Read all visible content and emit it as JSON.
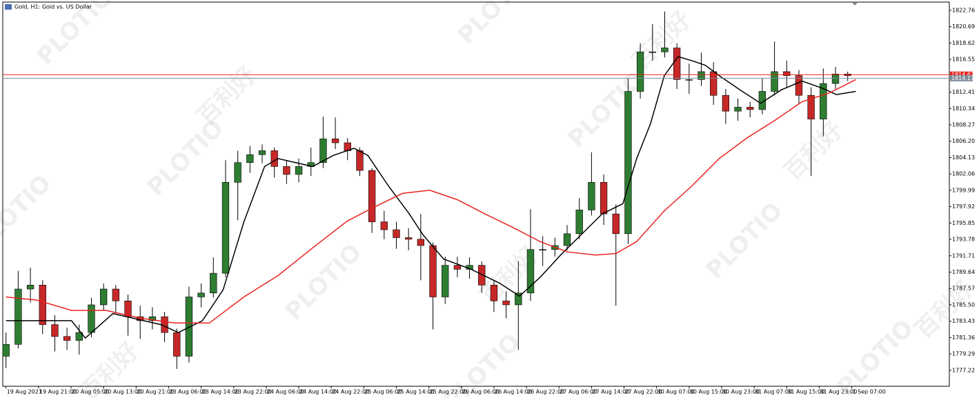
{
  "chart_data": {
    "type": "candlestick",
    "title": "Gold, H1: Gold vs. US Dollar",
    "x": [
      0,
      3,
      6,
      9,
      12,
      15,
      18,
      21,
      24,
      27,
      30,
      33,
      36,
      39,
      42,
      45,
      48,
      51,
      54,
      57,
      60,
      63,
      66,
      69,
      72,
      75,
      78,
      81,
      84,
      87,
      90,
      93,
      96,
      99,
      102,
      105,
      108,
      111,
      114,
      117,
      120,
      123,
      126,
      129,
      132,
      135,
      138,
      141,
      144,
      147,
      150,
      153,
      156,
      159,
      162,
      165,
      168,
      171,
      174,
      177,
      180,
      183,
      186,
      189,
      192,
      195,
      198,
      201,
      204,
      207
    ],
    "open": [
      1779,
      1780.5,
      1787.5,
      1788,
      1783,
      1781.5,
      1781,
      1782,
      1785.5,
      1787.5,
      1786,
      1784,
      1783.5,
      1784,
      1782,
      1779,
      1786.5,
      1787,
      1789.5,
      1801,
      1803.5,
      1804.5,
      1805,
      1803,
      1802,
      1803,
      1803.5,
      1806.5,
      1806,
      1805,
      1802.5,
      1796,
      1795,
      1794,
      1793.8,
      1793,
      1786.5,
      1790.5,
      1790,
      1790.5,
      1788,
      1786,
      1785.5,
      1787,
      1792.5,
      1792.5,
      1793,
      1794.5,
      1797.5,
      1801,
      1797,
      1794.5,
      1812.5,
      1817.5,
      1817.5,
      1818,
      1814,
      1814,
      1815,
      1812,
      1810,
      1810.5,
      1810.2,
      1812.5,
      1815,
      1814.5,
      1812,
      1809,
      1813.5,
      1814.7
    ],
    "high": [
      1782,
      1789.8,
      1790.2,
      1788.6,
      1784.2,
      1782.6,
      1783,
      1786.4,
      1788.2,
      1788,
      1786.8,
      1785.4,
      1785.2,
      1784.6,
      1782.5,
      1787.8,
      1788.2,
      1791.5,
      1803.8,
      1805,
      1805.6,
      1805.8,
      1805.4,
      1803.8,
      1804,
      1805.4,
      1809.3,
      1809.2,
      1806.6,
      1805.4,
      1802.8,
      1797.4,
      1796,
      1795.2,
      1797,
      1793.4,
      1791.6,
      1791.6,
      1791.5,
      1791,
      1788.6,
      1787.2,
      1791,
      1797.6,
      1794.2,
      1794,
      1795.6,
      1799,
      1804.8,
      1802,
      1798.2,
      1814.2,
      1818.6,
      1821,
      1822.6,
      1818.6,
      1816,
      1817.4,
      1816.2,
      1812.8,
      1811.6,
      1811.2,
      1814.2,
      1818.8,
      1816.4,
      1815.2,
      1813,
      1815.4,
      1815.6,
      1815
    ],
    "low": [
      1777.5,
      1780,
      1785.8,
      1781.8,
      1779.6,
      1779.8,
      1779.2,
      1781.4,
      1784.8,
      1784.5,
      1781.6,
      1781.2,
      1782.4,
      1780.8,
      1777.4,
      1778.2,
      1785.2,
      1786.4,
      1789,
      1796.2,
      1802.2,
      1803.4,
      1801.6,
      1800.8,
      1801,
      1801.8,
      1802.8,
      1805.2,
      1803.8,
      1801.8,
      1794.6,
      1793.8,
      1792.6,
      1792.4,
      1788.6,
      1782.4,
      1785.6,
      1789,
      1788.8,
      1787,
      1784.6,
      1783.8,
      1779.8,
      1786,
      1790.4,
      1791.6,
      1792.4,
      1793.8,
      1796.8,
      1795.6,
      1785.4,
      1793.2,
      1811.6,
      1816.4,
      1816.8,
      1812.8,
      1812.2,
      1813.2,
      1810.8,
      1808.4,
      1808.8,
      1809.2,
      1809.6,
      1812,
      1813,
      1811,
      1801.8,
      1806.8,
      1812.8,
      1813.8
    ],
    "close": [
      1780.5,
      1787.5,
      1788,
      1783,
      1781.5,
      1781,
      1782,
      1785.5,
      1787.5,
      1786,
      1784,
      1783.5,
      1784,
      1782,
      1779,
      1786.5,
      1787,
      1789.5,
      1801,
      1803.5,
      1804.5,
      1805,
      1803,
      1802,
      1803,
      1803.5,
      1806.5,
      1806,
      1805,
      1802.5,
      1796,
      1795,
      1794,
      1793.8,
      1793,
      1786.5,
      1790.5,
      1790,
      1790.5,
      1788,
      1786,
      1785.5,
      1787,
      1792.5,
      1792.5,
      1793,
      1794.5,
      1797.5,
      1801,
      1797,
      1794.5,
      1812.5,
      1817.5,
      1817.5,
      1818,
      1814,
      1814,
      1815,
      1812,
      1810,
      1810.5,
      1810.2,
      1812.5,
      1815,
      1814.5,
      1812,
      1809,
      1813.5,
      1814.7,
      1814.5
    ],
    "up_color": "#2e7d32",
    "down_color": "#c62828",
    "lines": [
      {
        "color": "#000000",
        "x": [
          0,
          16.1,
          19.5,
          26.3,
          38.1,
          42.4,
          48.3,
          53.4,
          58.5,
          63.6,
          66.9,
          75.4,
          80.5,
          85.6,
          89,
          94.1,
          99.2,
          102.5,
          107.6,
          114.4,
          121.2,
          126.3,
          131.4,
          136.4,
          141.5,
          146.6,
          151.7,
          155.1,
          158.5,
          161.9,
          165.3,
          168.6,
          172,
          175.4,
          180.5,
          185.6,
          190.7,
          195.8,
          200.8,
          204.2,
          209
        ],
        "values": [
          1783.5,
          1783.5,
          1781.3,
          1784.4,
          1783,
          1782,
          1783.5,
          1787.4,
          1796,
          1803,
          1804,
          1803,
          1804.4,
          1805.3,
          1804.4,
          1800.5,
          1797,
          1794.4,
          1791.3,
          1790,
          1788.3,
          1786.6,
          1789,
          1791.8,
          1794.4,
          1797,
          1798.3,
          1804,
          1808.4,
          1814.5,
          1816.9,
          1816.4,
          1815.8,
          1814.5,
          1812.7,
          1811,
          1812.7,
          1813.8,
          1812.9,
          1812.1,
          1812.5
        ]
      },
      {
        "color": "#e8211e",
        "x": [
          0,
          7.6,
          16.1,
          24.6,
          33.1,
          41.5,
          50,
          58.5,
          66.9,
          75.4,
          83.9,
          90.7,
          97.5,
          104.2,
          111,
          117.8,
          124.6,
          131.4,
          138.1,
          144.9,
          150,
          155.1,
          161.9,
          168.6,
          175.4,
          182.2,
          189,
          195.8,
          202.5,
          209
        ],
        "values": [
          1786.5,
          1786.1,
          1784.8,
          1784.8,
          1783.8,
          1783.2,
          1783.2,
          1786.5,
          1789.2,
          1792.7,
          1796.1,
          1797.9,
          1799.6,
          1800,
          1798.8,
          1797,
          1795.3,
          1793.5,
          1792.2,
          1791.8,
          1792,
          1793.5,
          1797.4,
          1800.5,
          1804,
          1806.6,
          1808.8,
          1811.2,
          1812.3,
          1814
        ]
      }
    ],
    "price_lines": [
      {
        "value": 1814.62,
        "color": "#e8211e"
      },
      {
        "value": 1814.17,
        "color": "#7f8c9a"
      }
    ],
    "xlim": [
      -0.8,
      232
    ],
    "ylim": [
      1775.2,
      1823.8
    ],
    "xticks": [
      {
        "value": 0,
        "label": "19 Aug 2021"
      },
      {
        "value": 8,
        "label": "19 Aug 21:00"
      },
      {
        "value": 16,
        "label": "20 Aug 05:00"
      },
      {
        "value": 24,
        "label": "20 Aug 13:00"
      },
      {
        "value": 32,
        "label": "20 Aug 21:00"
      },
      {
        "value": 40,
        "label": "23 Aug 06:00"
      },
      {
        "value": 48,
        "label": "23 Aug 14:00"
      },
      {
        "value": 56,
        "label": "23 Aug 22:00"
      },
      {
        "value": 64,
        "label": "24 Aug 06:00"
      },
      {
        "value": 72,
        "label": "24 Aug 14:00"
      },
      {
        "value": 80,
        "label": "24 Aug 22:00"
      },
      {
        "value": 88,
        "label": "25 Aug 06:00"
      },
      {
        "value": 96,
        "label": "25 Aug 14:00"
      },
      {
        "value": 104,
        "label": "25 Aug 22:00"
      },
      {
        "value": 112,
        "label": "26 Aug 06:00"
      },
      {
        "value": 120,
        "label": "26 Aug 14:00"
      },
      {
        "value": 128,
        "label": "26 Aug 22:00"
      },
      {
        "value": 136,
        "label": "27 Aug 06:00"
      },
      {
        "value": 144,
        "label": "27 Aug 14:00"
      },
      {
        "value": 152,
        "label": "27 Aug 22:00"
      },
      {
        "value": 160,
        "label": "30 Aug 07:00"
      },
      {
        "value": 168,
        "label": "30 Aug 15:00"
      },
      {
        "value": 176,
        "label": "30 Aug 23:00"
      },
      {
        "value": 184,
        "label": "31 Aug 07:00"
      },
      {
        "value": 192,
        "label": "31 Aug 15:00"
      },
      {
        "value": 200,
        "label": "31 Aug 23:00"
      },
      {
        "value": 208,
        "label": "1 Sep 07:00"
      }
    ],
    "yticks": [
      1822.76,
      1820.69,
      1818.62,
      1816.55,
      1812.41,
      1810.34,
      1808.27,
      {
        "value": 1806.2,
        "label": "1806.20"
      },
      1804.13,
      1802.06,
      1799.99,
      1797.92,
      1795.85,
      1793.78,
      1791.71,
      1789.64,
      1787.57,
      {
        "value": 1785.5,
        "label": "1785.50"
      },
      1783.43,
      1781.36,
      1779.29,
      1777.22
    ]
  },
  "watermarks": [
    "PLOTIO",
    "百利好"
  ]
}
